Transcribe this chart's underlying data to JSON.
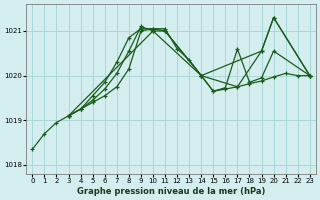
{
  "background_color": "#d4eef0",
  "grid_color": "#a8d8d8",
  "line_color": "#1a5c1a",
  "title": "Graphe pression niveau de la mer (hPa)",
  "xlim": [
    -0.5,
    23.5
  ],
  "ylim": [
    1017.8,
    1021.6
  ],
  "yticks": [
    1018,
    1019,
    1020,
    1021
  ],
  "xticks": [
    0,
    1,
    2,
    3,
    4,
    5,
    6,
    7,
    8,
    9,
    10,
    11,
    12,
    13,
    14,
    15,
    16,
    17,
    18,
    19,
    20,
    21,
    22,
    23
  ],
  "series": [
    {
      "x": [
        0,
        1,
        2,
        3,
        4,
        5,
        6,
        7,
        8,
        9,
        10,
        11,
        12,
        13,
        14,
        15,
        16,
        17,
        18,
        19,
        20,
        21,
        22,
        23
      ],
      "y": [
        1018.35,
        1018.7,
        1018.95,
        1019.1,
        1019.25,
        1019.4,
        1019.55,
        1019.75,
        1020.15,
        1021.0,
        1021.05,
        1021.05,
        1020.6,
        1020.35,
        1020.0,
        1019.65,
        1019.7,
        1019.75,
        1019.82,
        1019.88,
        1019.97,
        1020.05,
        1020.0,
        1020.0
      ]
    },
    {
      "x": [
        3,
        4,
        5,
        6,
        7,
        8,
        9,
        10,
        11,
        14,
        19,
        20,
        23
      ],
      "y": [
        1019.1,
        1019.25,
        1019.55,
        1019.85,
        1020.3,
        1020.85,
        1021.05,
        1021.05,
        1021.0,
        1020.0,
        1020.55,
        1021.3,
        1020.0
      ]
    },
    {
      "x": [
        3,
        4,
        5,
        6,
        7,
        8,
        9,
        10,
        11,
        14,
        15,
        16,
        17,
        18,
        19,
        20,
        23
      ],
      "y": [
        1019.1,
        1019.25,
        1019.45,
        1019.7,
        1020.05,
        1020.55,
        1021.1,
        1021.0,
        1021.0,
        1020.0,
        1019.65,
        1019.73,
        1020.6,
        1019.85,
        1019.95,
        1020.55,
        1020.0
      ]
    },
    {
      "x": [
        3,
        10,
        14,
        17,
        19,
        20,
        23
      ],
      "y": [
        1019.1,
        1021.0,
        1020.0,
        1019.75,
        1020.55,
        1021.3,
        1020.0
      ]
    }
  ]
}
